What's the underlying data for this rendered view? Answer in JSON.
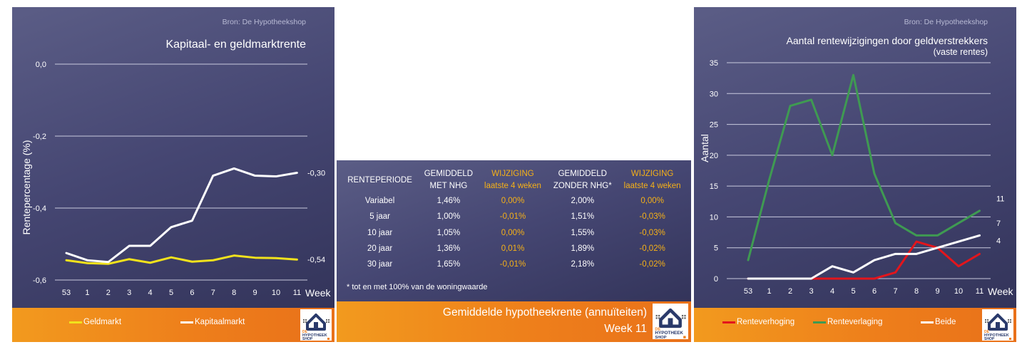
{
  "colors": {
    "panel_bg": "#454672",
    "footer_orange": "#ee7f1b",
    "white_line": "#ffffff",
    "yellow_line": "#f1e21c",
    "green_line": "#3f9a52",
    "red_line": "#e3151c",
    "change_text": "#f6b117",
    "logo_blue": "#2a3a6b",
    "logo_orange": "#ee7f1b"
  },
  "logo": {
    "line1": "DE",
    "line2": "HYPOTHEEK",
    "line3": "SHOP"
  },
  "left_panel": {
    "source": "Bron: De Hypotheekshop",
    "title": "Kapitaal- en geldmarktrente",
    "end_label_kapitaal": "-0,30",
    "end_label_geld": "-0,54"
  },
  "right_panel": {
    "source": "Bron: De Hypotheekshop",
    "title": "Aantal rentewijzigingen door geldverstrekkers",
    "subtitle": "(vaste rentes)",
    "end_label_verlaging": "11",
    "end_label_beide": "7",
    "end_label_verhoging": "4"
  },
  "rate_table": {
    "headers": [
      {
        "line1": "RENTEPERIODE",
        "line2": ""
      },
      {
        "line1": "GEMIDDELD",
        "line2": "MET NHG"
      },
      {
        "line1": "WIJZIGING",
        "line2": "laatste 4 weken"
      },
      {
        "line1": "GEMIDDELD",
        "line2": "ZONDER NHG*"
      },
      {
        "line1": "WIJZIGING",
        "line2": "laatste 4 weken"
      }
    ],
    "rows": [
      {
        "period": "Variabel",
        "met_nhg": "1,46%",
        "met_chg": "0,00%",
        "zonder_nhg": "2,00%",
        "zonder_chg": "0,00%"
      },
      {
        "period": "5 jaar",
        "met_nhg": "1,00%",
        "met_chg": "-0,01%",
        "zonder_nhg": "1,51%",
        "zonder_chg": "-0,03%"
      },
      {
        "period": "10 jaar",
        "met_nhg": "1,05%",
        "met_chg": "0,00%",
        "zonder_nhg": "1,55%",
        "zonder_chg": "-0,03%"
      },
      {
        "period": "20 jaar",
        "met_nhg": "1,36%",
        "met_chg": "0,01%",
        "zonder_nhg": "1,89%",
        "zonder_chg": "-0,02%"
      },
      {
        "period": "30 jaar",
        "met_nhg": "1,65%",
        "met_chg": "-0,01%",
        "zonder_nhg": "2,18%",
        "zonder_chg": "-0,02%"
      }
    ],
    "note": "* tot en met 100% van de woningwaarde",
    "footer_title": "Gemiddelde hypotheekrente (annuïteiten)",
    "footer_week": "Week 11"
  },
  "chart_data": [
    {
      "type": "line",
      "title": "Kapitaal- en geldmarktrente",
      "xlabel": "Week",
      "ylabel": "Rentepercentage (%)",
      "x": [
        "53",
        "1",
        "2",
        "3",
        "4",
        "5",
        "6",
        "7",
        "8",
        "9",
        "10",
        "11"
      ],
      "ylim": [
        -0.6,
        0.0
      ],
      "yticks": [
        "0,0",
        "-0,2",
        "-0,4",
        "-0,6"
      ],
      "ytick_values": [
        0.0,
        -0.2,
        -0.4,
        -0.6
      ],
      "grid": true,
      "legend_position": "bottom",
      "series": [
        {
          "name": "Geldmarkt",
          "color": "#f1e21c",
          "values": [
            -0.545,
            -0.553,
            -0.555,
            -0.542,
            -0.552,
            -0.537,
            -0.549,
            -0.545,
            -0.532,
            -0.538,
            -0.539,
            -0.543
          ]
        },
        {
          "name": "Kapitaalmarkt",
          "color": "#ffffff",
          "values": [
            -0.525,
            -0.545,
            -0.55,
            -0.505,
            -0.505,
            -0.453,
            -0.435,
            -0.31,
            -0.29,
            -0.31,
            -0.312,
            -0.302
          ]
        }
      ]
    },
    {
      "type": "line",
      "title": "Aantal rentewijzigingen door geldverstrekkers",
      "subtitle": "(vaste rentes)",
      "xlabel": "Week",
      "ylabel": "Aantal",
      "x": [
        "53",
        "1",
        "2",
        "3",
        "4",
        "5",
        "6",
        "7",
        "8",
        "9",
        "10",
        "11"
      ],
      "ylim": [
        0,
        35
      ],
      "yticks": [
        "0",
        "5",
        "10",
        "15",
        "20",
        "25",
        "30",
        "35"
      ],
      "ytick_values": [
        0,
        5,
        10,
        15,
        20,
        25,
        30,
        35
      ],
      "grid": true,
      "legend_position": "bottom",
      "series": [
        {
          "name": "Renteverhoging",
          "color": "#e3151c",
          "values": [
            0,
            0,
            0,
            0,
            0,
            0,
            0,
            1,
            6,
            5,
            2,
            4
          ]
        },
        {
          "name": "Renteverlaging",
          "color": "#3f9a52",
          "values": [
            3,
            16,
            28,
            29,
            20,
            33,
            17,
            9,
            7,
            7,
            9,
            11
          ]
        },
        {
          "name": "Beide",
          "color": "#ffffff",
          "values": [
            0,
            0,
            0,
            0,
            2,
            1,
            3,
            4,
            4,
            5,
            6,
            7
          ]
        }
      ]
    }
  ]
}
